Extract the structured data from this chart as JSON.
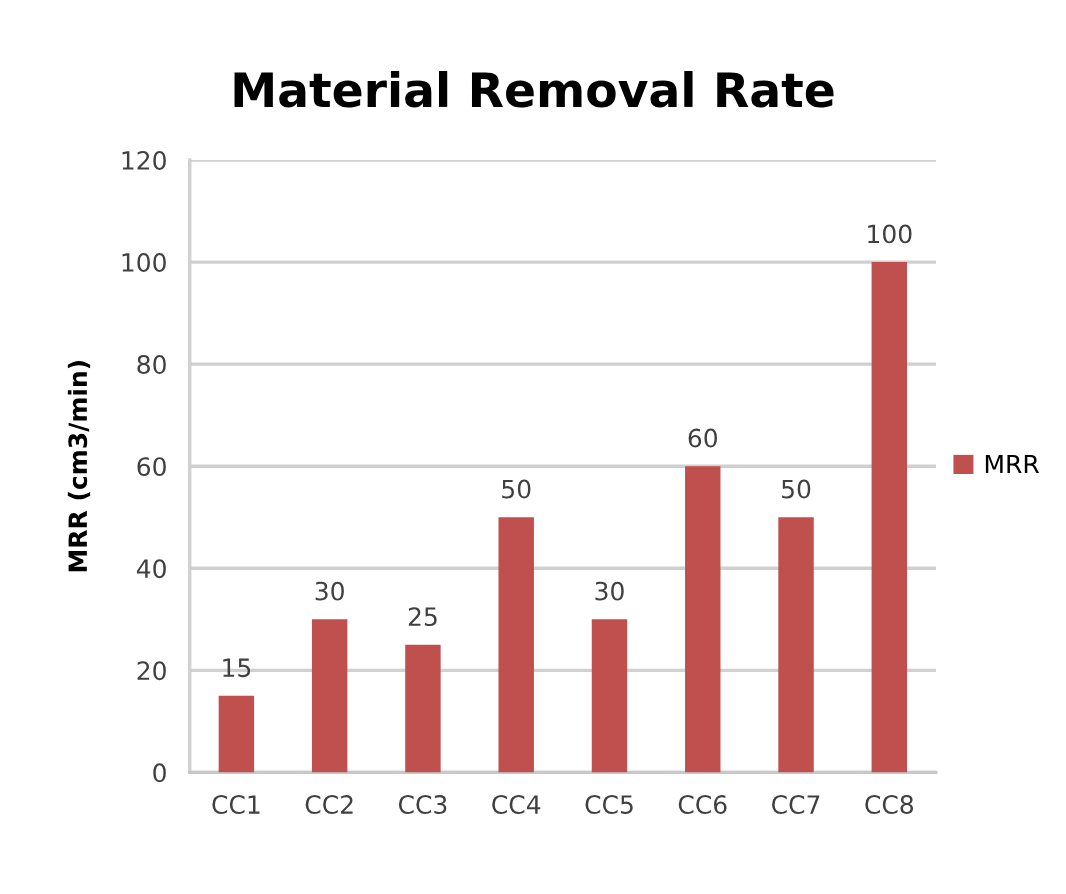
{
  "chart_data": {
    "type": "bar",
    "title": "Material Removal Rate",
    "ylabel": "MRR (cm3/min)",
    "categories": [
      "CC1",
      "CC2",
      "CC3",
      "CC4",
      "CC5",
      "CC6",
      "CC7",
      "CC8"
    ],
    "series": [
      {
        "name": "MRR",
        "color": "#c0504d",
        "values": [
          15,
          30,
          25,
          50,
          30,
          60,
          50,
          100
        ]
      }
    ],
    "ylim": [
      0,
      120
    ],
    "yticks": [
      0,
      20,
      40,
      60,
      80,
      100,
      120
    ],
    "grid": "y",
    "legend": "right",
    "data_labels": true
  }
}
